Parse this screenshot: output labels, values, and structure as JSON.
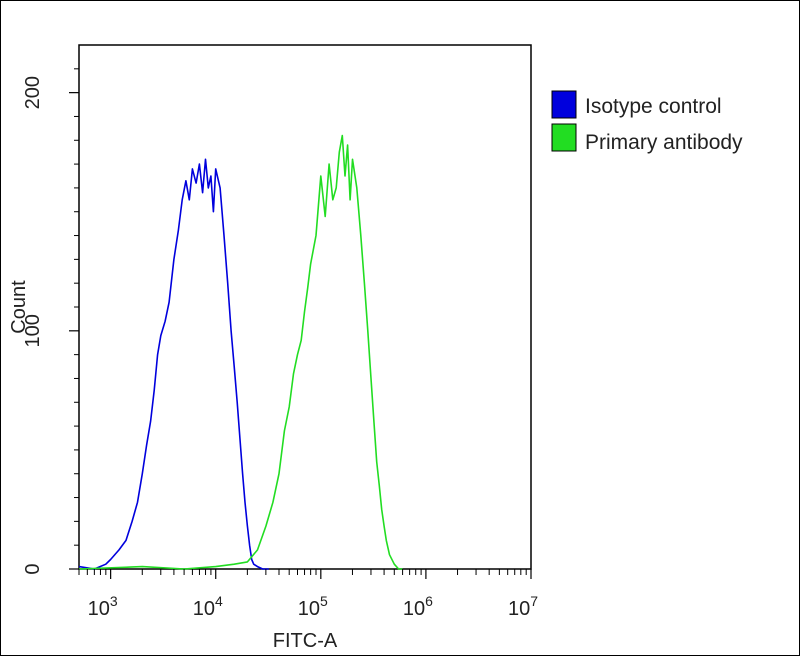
{
  "chart_data": {
    "type": "line",
    "title": "",
    "xlabel": "FITC-A",
    "ylabel": "Count",
    "xscale": "log",
    "xlim": [
      500,
      10000000
    ],
    "ylim": [
      0,
      220
    ],
    "x_ticks": [
      {
        "base": "10",
        "exp": "3",
        "value": 1000
      },
      {
        "base": "10",
        "exp": "4",
        "value": 10000
      },
      {
        "base": "10",
        "exp": "5",
        "value": 100000
      },
      {
        "base": "10",
        "exp": "6",
        "value": 1000000
      },
      {
        "base": "10",
        "exp": "7",
        "value": 10000000
      }
    ],
    "y_ticks": [
      {
        "label": "0",
        "value": 0
      },
      {
        "label": "100",
        "value": 100
      },
      {
        "label": "200",
        "value": 200
      }
    ],
    "legend_position": "right",
    "grid": false,
    "series": [
      {
        "name": "Isotype control",
        "color": "#0000dd",
        "x": [
          500,
          700,
          900,
          1000,
          1200,
          1400,
          1600,
          1800,
          2000,
          2200,
          2400,
          2600,
          2800,
          3000,
          3300,
          3600,
          4000,
          4400,
          4800,
          5200,
          5600,
          6000,
          6500,
          7000,
          7500,
          8000,
          8500,
          9000,
          9500,
          10000,
          11000,
          12000,
          13000,
          14000,
          15000,
          16000,
          17000,
          18000,
          19000,
          20000,
          21000,
          22000,
          23000,
          25000,
          28000,
          32000
        ],
        "y": [
          1,
          0,
          2,
          4,
          8,
          12,
          20,
          28,
          40,
          52,
          62,
          75,
          90,
          98,
          104,
          112,
          130,
          142,
          155,
          163,
          155,
          168,
          162,
          170,
          158,
          172,
          160,
          165,
          150,
          168,
          160,
          140,
          120,
          100,
          85,
          70,
          55,
          40,
          28,
          18,
          10,
          4,
          2,
          1,
          0,
          0
        ]
      },
      {
        "name": "Primary antibody",
        "color": "#22dd22",
        "x": [
          500,
          2000,
          5000,
          10000,
          15000,
          20000,
          25000,
          30000,
          35000,
          40000,
          45000,
          50000,
          55000,
          60000,
          65000,
          70000,
          75000,
          80000,
          90000,
          100000,
          110000,
          120000,
          130000,
          140000,
          150000,
          160000,
          170000,
          180000,
          190000,
          200000,
          220000,
          240000,
          260000,
          280000,
          300000,
          320000,
          340000,
          360000,
          380000,
          400000,
          420000,
          450000,
          500000,
          550000,
          600000
        ],
        "y": [
          0,
          1,
          0,
          1,
          2,
          3,
          8,
          18,
          28,
          40,
          58,
          68,
          82,
          90,
          96,
          108,
          118,
          128,
          140,
          165,
          148,
          170,
          155,
          160,
          175,
          182,
          165,
          178,
          155,
          172,
          160,
          140,
          120,
          100,
          80,
          62,
          45,
          35,
          25,
          18,
          12,
          6,
          2,
          0,
          0
        ]
      }
    ]
  },
  "legend": {
    "items": [
      {
        "label": "Isotype control",
        "color": "#0000dd"
      },
      {
        "label": "Primary antibody",
        "color": "#22dd22"
      }
    ]
  }
}
